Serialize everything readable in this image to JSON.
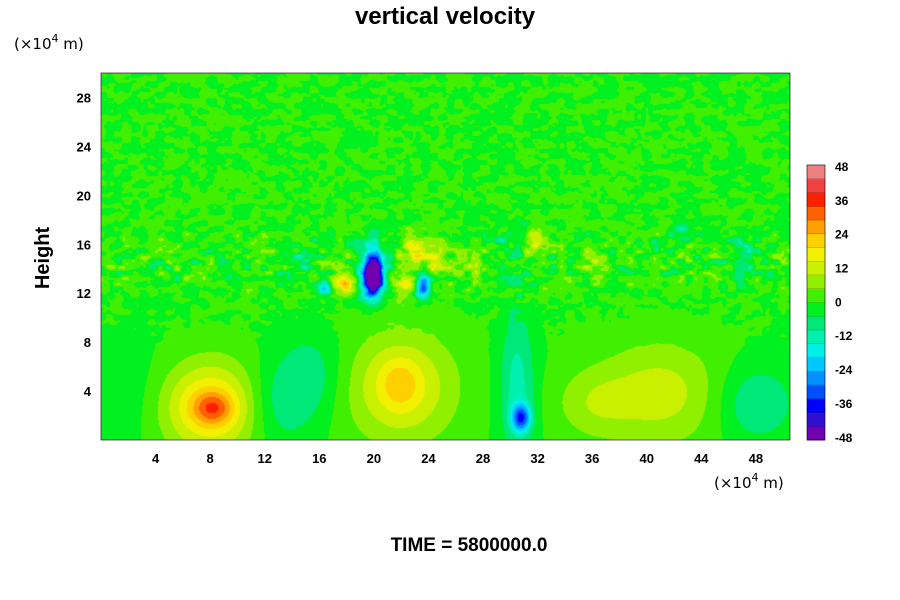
{
  "chart_data": {
    "type": "heatmap",
    "title": "vertical velocity",
    "ylabel": "Height",
    "xlabel": "",
    "x_unit": {
      "prefix": "(×10",
      "exp": "4",
      "suffix": " m)"
    },
    "y_unit": {
      "prefix": "(×10",
      "exp": "4",
      "suffix": " m)"
    },
    "xlim": [
      0,
      50.5
    ],
    "ylim": [
      0,
      30
    ],
    "x_ticks": [
      "4",
      "8",
      "12",
      "16",
      "20",
      "24",
      "28",
      "32",
      "36",
      "40",
      "44",
      "48"
    ],
    "y_ticks": [
      "4",
      "8",
      "12",
      "16",
      "20",
      "24",
      "28"
    ],
    "colorbar": {
      "range": [
        -48,
        48
      ],
      "tick_labels": [
        "48",
        "36",
        "24",
        "12",
        "0",
        "-12",
        "-24",
        "-36",
        "-48"
      ],
      "colors": [
        "#7000b0",
        "#3010d0",
        "#0000ff",
        "#0050ff",
        "#0090ff",
        "#00c8ff",
        "#00f0e8",
        "#00f0b0",
        "#00e878",
        "#00f020",
        "#40f000",
        "#90f000",
        "#c8f000",
        "#f0f000",
        "#ffd000",
        "#ffa000",
        "#ff6000",
        "#ff2000",
        "#f04040",
        "#f08080"
      ]
    },
    "background_value": 0,
    "features": [
      {
        "x": 8,
        "y": 2.7,
        "sx": 2.6,
        "sy": 2.6,
        "value": 22
      },
      {
        "x": 8.2,
        "y": 2.6,
        "sx": 1.0,
        "sy": 0.9,
        "value": 14
      },
      {
        "x": 22,
        "y": 4.3,
        "sx": 2.8,
        "sy": 3.2,
        "value": 16
      },
      {
        "x": 21.9,
        "y": 4.6,
        "sx": 1.0,
        "sy": 1.4,
        "value": 8
      },
      {
        "x": 41,
        "y": 3.8,
        "sx": 3.2,
        "sy": 3.0,
        "value": 12
      },
      {
        "x": 36,
        "y": 3.0,
        "sx": 2.0,
        "sy": 2.0,
        "value": 7
      },
      {
        "x": 13,
        "y": 3.0,
        "sx": 1.8,
        "sy": 2.5,
        "value": -9
      },
      {
        "x": 15.5,
        "y": 5.5,
        "sx": 1.6,
        "sy": 2.5,
        "value": -7
      },
      {
        "x": 30.5,
        "y": 4.5,
        "sx": 0.9,
        "sy": 4.0,
        "value": -12
      },
      {
        "x": 30.8,
        "y": 1.8,
        "sx": 0.5,
        "sy": 0.8,
        "value": -28
      },
      {
        "x": 48,
        "y": 3.0,
        "sx": 2.0,
        "sy": 2.2,
        "value": -10
      },
      {
        "x": 2,
        "y": 3.5,
        "sx": 2.5,
        "sy": 3.0,
        "value": -4
      },
      {
        "x": 20,
        "y": 14.0,
        "sx": 0.5,
        "sy": 1.4,
        "value": -44
      },
      {
        "x": 19.8,
        "y": 13.0,
        "sx": 0.6,
        "sy": 1.0,
        "value": -30
      },
      {
        "x": 23.6,
        "y": 12.5,
        "sx": 0.4,
        "sy": 0.7,
        "value": -32
      },
      {
        "x": 16.5,
        "y": 12.5,
        "sx": 0.4,
        "sy": 0.5,
        "value": -24
      },
      {
        "x": 17.6,
        "y": 12.8,
        "sx": 0.7,
        "sy": 0.6,
        "value": 22
      },
      {
        "x": 23.0,
        "y": 15.5,
        "sx": 0.6,
        "sy": 0.9,
        "value": 18
      },
      {
        "x": 24.5,
        "y": 14.5,
        "sx": 0.6,
        "sy": 0.9,
        "value": 14
      },
      {
        "x": 22.3,
        "y": 12.8,
        "sx": 0.6,
        "sy": 0.6,
        "value": 16
      },
      {
        "x": 31.8,
        "y": 16.5,
        "sx": 0.6,
        "sy": 0.8,
        "value": 14
      },
      {
        "x": 31.0,
        "y": 17.0,
        "sx": 0.4,
        "sy": 0.6,
        "value": -10
      },
      {
        "x": 29.5,
        "y": 16.0,
        "sx": 0.5,
        "sy": 0.7,
        "value": -8
      },
      {
        "x": 27,
        "y": 14.5,
        "sx": 0.7,
        "sy": 0.8,
        "value": 8
      },
      {
        "x": 14.5,
        "y": 14.5,
        "sx": 0.8,
        "sy": 1.0,
        "value": -6
      },
      {
        "x": 42.5,
        "y": 17.0,
        "sx": 0.7,
        "sy": 0.7,
        "value": -8
      },
      {
        "x": 47,
        "y": 15.0,
        "sx": 0.8,
        "sy": 1.0,
        "value": -7
      },
      {
        "x": 36,
        "y": 14.5,
        "sx": 0.8,
        "sy": 0.8,
        "value": 6
      }
    ]
  },
  "footer": {
    "time_label": "TIME = 5800000.0"
  }
}
